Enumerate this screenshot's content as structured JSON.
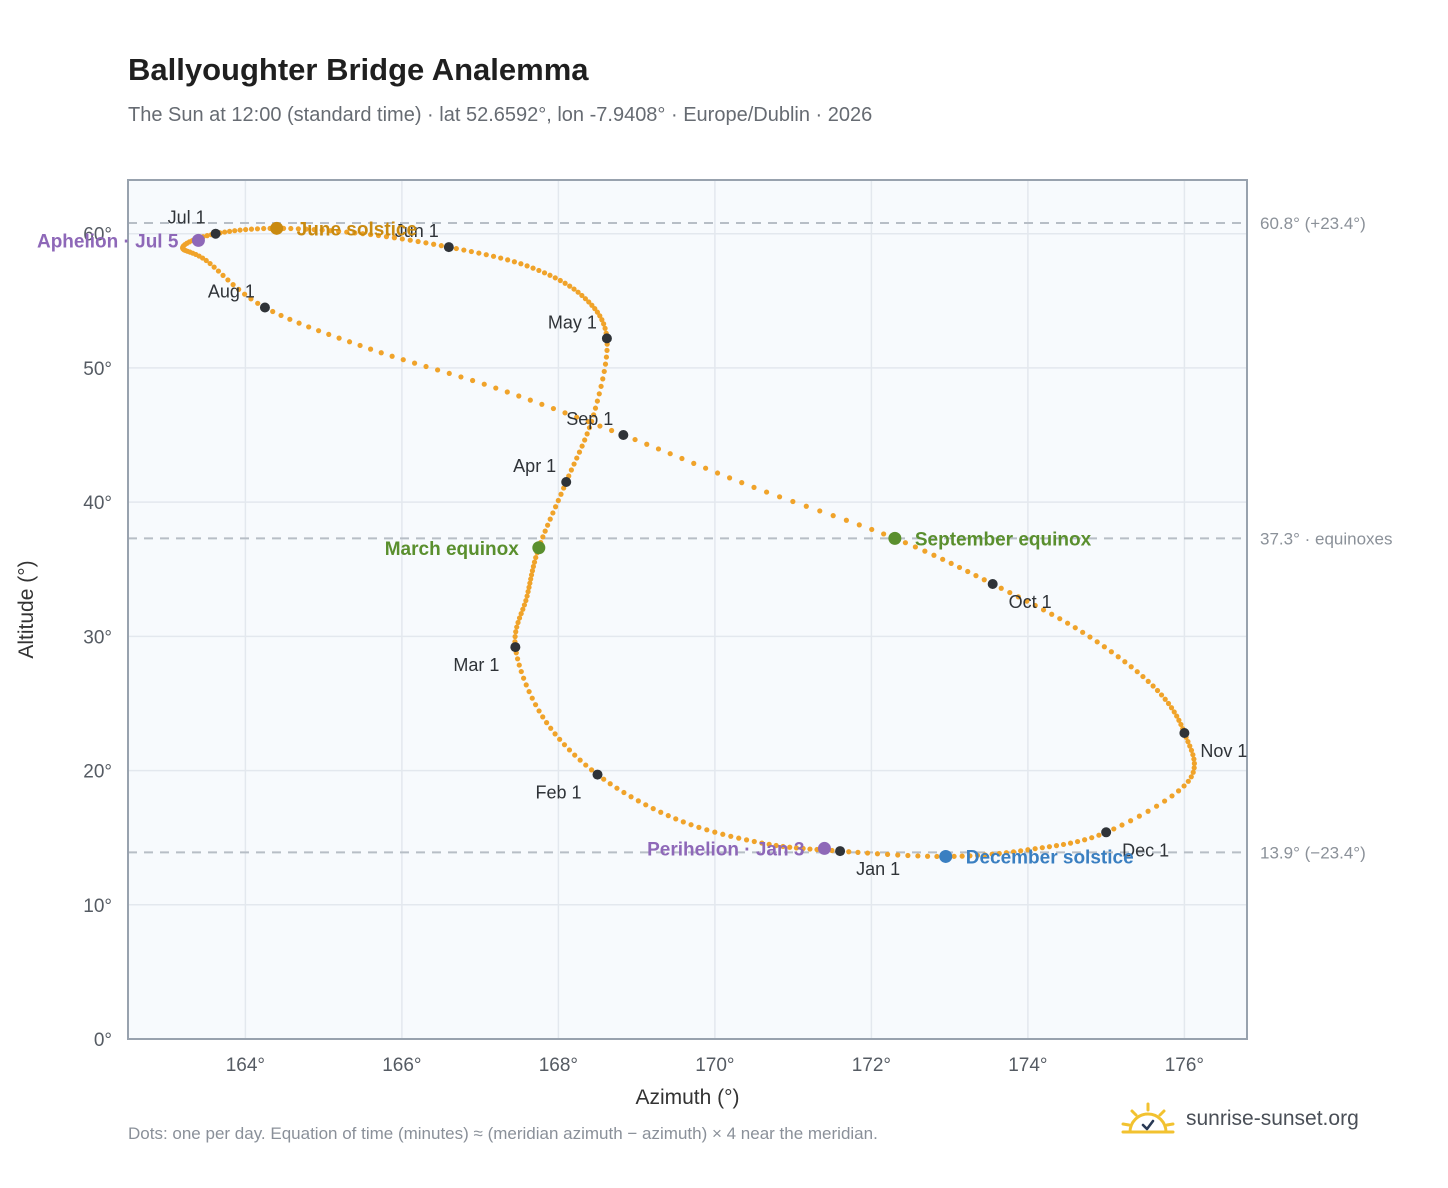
{
  "header": {
    "title": "Ballyoughter Bridge Analemma",
    "subtitle": "The Sun at 12:00 (standard time) · lat 52.6592°, lon -7.9408° · Europe/Dublin · 2026"
  },
  "footer": {
    "note": "Dots: one per day. Equation of time (minutes) ≈ (meridian azimuth − azimuth) × 4 near the meridian.",
    "brand": "sunrise-sunset.org",
    "logo_icon": "sun-logo-icon"
  },
  "chart_data": {
    "type": "scatter",
    "xlabel": "Azimuth (°)",
    "ylabel": "Altitude (°)",
    "xlim": [
      162.5,
      176.8
    ],
    "ylim": [
      0,
      64
    ],
    "xticks": [
      164,
      166,
      168,
      170,
      172,
      174,
      176
    ],
    "xtick_labels": [
      "164°",
      "166°",
      "168°",
      "170°",
      "172°",
      "174°",
      "176°"
    ],
    "yticks": [
      0,
      10,
      20,
      30,
      40,
      50,
      60
    ],
    "ytick_labels": [
      "0°",
      "10°",
      "20°",
      "30°",
      "40°",
      "50°",
      "60°"
    ],
    "grid": true,
    "colors": {
      "path": "#f0a32a",
      "month": "#2f3338",
      "solstice_june": "#c98a10",
      "solstice_december": "#3a7fc1",
      "equinox": "#5a8f2e",
      "apsis": "#8e68b8",
      "reference": "#b7bec6",
      "plot_bg": "#f7fafd"
    },
    "reference_lines": [
      {
        "y": 60.8,
        "label": "60.8° (+23.4°)"
      },
      {
        "y": 37.3,
        "label": "37.3° · equinoxes"
      },
      {
        "y": 13.9,
        "label": "13.9° (−23.4°)"
      }
    ],
    "path": [
      [
        171.6,
        14.0
      ],
      [
        170.6,
        14.6
      ],
      [
        169.5,
        16.4
      ],
      [
        168.5,
        19.7
      ],
      [
        167.8,
        24.0
      ],
      [
        167.45,
        29.2
      ],
      [
        167.6,
        33.0
      ],
      [
        167.75,
        36.6
      ],
      [
        168.1,
        41.5
      ],
      [
        168.45,
        46.5
      ],
      [
        168.62,
        52.2
      ],
      [
        168.3,
        55.4
      ],
      [
        167.6,
        57.6
      ],
      [
        166.6,
        59.0
      ],
      [
        165.5,
        60.0
      ],
      [
        164.4,
        60.4
      ],
      [
        163.62,
        60.0
      ],
      [
        163.2,
        59.0
      ],
      [
        163.5,
        58.0
      ],
      [
        164.25,
        54.5
      ],
      [
        165.6,
        51.4
      ],
      [
        167.2,
        48.5
      ],
      [
        168.83,
        45.0
      ],
      [
        170.5,
        41.1
      ],
      [
        172.3,
        37.3
      ],
      [
        173.55,
        33.9
      ],
      [
        174.7,
        30.3
      ],
      [
        175.6,
        26.3
      ],
      [
        176.0,
        22.8
      ],
      [
        176.05,
        19.2
      ],
      [
        175.0,
        15.4
      ],
      [
        174.0,
        14.1
      ],
      [
        172.95,
        13.6
      ],
      [
        171.6,
        14.0
      ]
    ],
    "months": [
      {
        "label": "Jan 1",
        "x": 171.6,
        "y": 14.0,
        "pos": "below-right"
      },
      {
        "label": "Feb 1",
        "x": 168.5,
        "y": 19.7,
        "pos": "below-left"
      },
      {
        "label": "Mar 1",
        "x": 167.45,
        "y": 29.2,
        "pos": "below-left"
      },
      {
        "label": "Apr 1",
        "x": 168.1,
        "y": 41.5,
        "pos": "above-left"
      },
      {
        "label": "May 1",
        "x": 168.62,
        "y": 52.2,
        "pos": "above-left"
      },
      {
        "label": "Jun 1",
        "x": 166.6,
        "y": 59.0,
        "pos": "above-left"
      },
      {
        "label": "Jul 1",
        "x": 163.62,
        "y": 60.0,
        "pos": "above-left"
      },
      {
        "label": "Aug 1",
        "x": 164.25,
        "y": 54.5,
        "pos": "above-left"
      },
      {
        "label": "Sep 1",
        "x": 168.83,
        "y": 45.0,
        "pos": "above-left"
      },
      {
        "label": "Oct 1",
        "x": 173.55,
        "y": 33.9,
        "pos": "below-right"
      },
      {
        "label": "Nov 1",
        "x": 176.0,
        "y": 22.8,
        "pos": "below-right"
      },
      {
        "label": "Dec 1",
        "x": 175.0,
        "y": 15.4,
        "pos": "below-right"
      }
    ],
    "events": [
      {
        "label": "June solstice",
        "x": 164.4,
        "y": 60.4,
        "color_key": "solstice_june",
        "pos": "right"
      },
      {
        "label": "December solstice",
        "x": 172.95,
        "y": 13.6,
        "color_key": "solstice_december",
        "pos": "right"
      },
      {
        "label": "March equinox",
        "x": 167.75,
        "y": 36.6,
        "color_key": "equinox",
        "pos": "left"
      },
      {
        "label": "September equinox",
        "x": 172.3,
        "y": 37.3,
        "color_key": "equinox",
        "pos": "right"
      },
      {
        "label": "Aphelion · Jul 5",
        "x": 163.4,
        "y": 59.5,
        "color_key": "apsis",
        "pos": "left"
      },
      {
        "label": "Perihelion · Jan 3",
        "x": 171.4,
        "y": 14.2,
        "color_key": "apsis",
        "pos": "left"
      }
    ]
  }
}
